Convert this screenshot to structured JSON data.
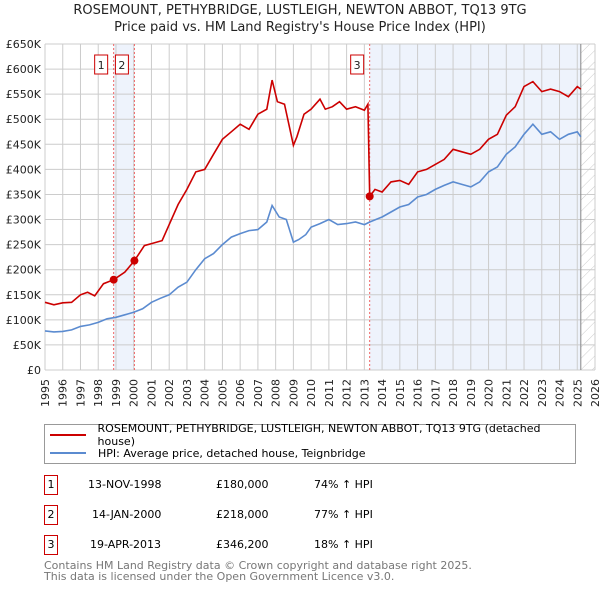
{
  "chart_data": {
    "type": "line",
    "title": "ROSEMOUNT, PETHYBRIDGE, LUSTLEIGH, NEWTON ABBOT, TQ13 9TG",
    "subtitle": "Price paid vs. HM Land Registry's House Price Index (HPI)",
    "xlim": [
      1995,
      2026
    ],
    "ylim": [
      0,
      650000
    ],
    "x_ticks": [
      "1995",
      "1996",
      "1997",
      "1998",
      "1999",
      "2000",
      "2001",
      "2002",
      "2003",
      "2004",
      "2005",
      "2006",
      "2007",
      "2008",
      "2009",
      "2010",
      "2011",
      "2012",
      "2013",
      "2014",
      "2015",
      "2016",
      "2017",
      "2018",
      "2019",
      "2020",
      "2021",
      "2022",
      "2023",
      "2024",
      "2025",
      "2026"
    ],
    "y_ticks": [
      "£0",
      "£50K",
      "£100K",
      "£150K",
      "£200K",
      "£250K",
      "£300K",
      "£350K",
      "£400K",
      "£450K",
      "£500K",
      "£550K",
      "£600K",
      "£650K"
    ],
    "grid": true,
    "colors": {
      "property": "#cc0000",
      "hpi": "#5b8bd0",
      "shade": "#eef3fc"
    },
    "series": [
      {
        "name": "ROSEMOUNT, PETHYBRIDGE, LUSTLEIGH, NEWTON ABBOT, TQ13 9TG (detached house)",
        "x": [
          1995,
          1995.5,
          1996,
          1996.5,
          1997,
          1997.4,
          1997.8,
          1998.3,
          1998.87,
          1999.5,
          2000.04,
          2000.6,
          2001,
          2001.6,
          2002,
          2002.5,
          2003,
          2003.5,
          2004,
          2004.5,
          2005,
          2005.5,
          2006,
          2006.5,
          2007,
          2007.5,
          2007.8,
          2008.1,
          2008.5,
          2009,
          2009.2,
          2009.6,
          2010,
          2010.5,
          2010.8,
          2011.2,
          2011.6,
          2012,
          2012.5,
          2013,
          2013.2,
          2013.3,
          2013.6,
          2014,
          2014.5,
          2015,
          2015.5,
          2016,
          2016.5,
          2017,
          2017.5,
          2018,
          2018.5,
          2019,
          2019.5,
          2020,
          2020.5,
          2021,
          2021.5,
          2022,
          2022.5,
          2023,
          2023.5,
          2024,
          2024.5,
          2025,
          2025.2
        ],
        "values": [
          135000,
          130000,
          134000,
          135000,
          150000,
          155000,
          148000,
          172000,
          180000,
          195000,
          218000,
          248000,
          252000,
          258000,
          290000,
          330000,
          360000,
          395000,
          400000,
          430000,
          460000,
          475000,
          490000,
          480000,
          510000,
          520000,
          578000,
          535000,
          530000,
          448000,
          465000,
          510000,
          520000,
          540000,
          520000,
          525000,
          535000,
          520000,
          525000,
          518000,
          530000,
          346200,
          360000,
          355000,
          375000,
          378000,
          370000,
          395000,
          400000,
          410000,
          420000,
          440000,
          435000,
          430000,
          440000,
          460000,
          470000,
          508000,
          525000,
          565000,
          575000,
          555000,
          560000,
          555000,
          545000,
          565000,
          560000
        ]
      },
      {
        "name": "HPI: Average price, detached house, Teignbridge",
        "x": [
          1995,
          1995.5,
          1996,
          1996.5,
          1997,
          1997.5,
          1998,
          1998.5,
          1999,
          1999.5,
          2000,
          2000.5,
          2001,
          2001.5,
          2002,
          2002.5,
          2003,
          2003.5,
          2004,
          2004.5,
          2005,
          2005.5,
          2006,
          2006.5,
          2007,
          2007.5,
          2007.8,
          2008.2,
          2008.6,
          2009,
          2009.3,
          2009.7,
          2010,
          2010.5,
          2011,
          2011.5,
          2012,
          2012.5,
          2013,
          2013.3,
          2014,
          2014.5,
          2015,
          2015.5,
          2016,
          2016.5,
          2017,
          2017.5,
          2018,
          2018.5,
          2019,
          2019.5,
          2020,
          2020.5,
          2021,
          2021.5,
          2022,
          2022.5,
          2023,
          2023.5,
          2024,
          2024.5,
          2025,
          2025.2
        ],
        "values": [
          78000,
          76000,
          77000,
          80000,
          87000,
          90000,
          95000,
          102000,
          105000,
          110000,
          115000,
          122000,
          135000,
          143000,
          150000,
          165000,
          175000,
          200000,
          222000,
          232000,
          250000,
          265000,
          272000,
          278000,
          280000,
          295000,
          328000,
          305000,
          300000,
          255000,
          260000,
          270000,
          285000,
          292000,
          300000,
          290000,
          292000,
          295000,
          290000,
          295000,
          305000,
          315000,
          325000,
          330000,
          345000,
          350000,
          360000,
          368000,
          375000,
          370000,
          365000,
          375000,
          395000,
          405000,
          430000,
          445000,
          470000,
          490000,
          470000,
          475000,
          460000,
          470000,
          475000,
          465000
        ]
      }
    ],
    "sales": [
      {
        "label": "1",
        "x": 1998.87,
        "value": 180000
      },
      {
        "label": "2",
        "x": 2000.04,
        "value": 218000
      },
      {
        "label": "3",
        "x": 2013.3,
        "value": 346200
      }
    ],
    "shaded_ranges": [
      [
        1998.87,
        2000.04
      ],
      [
        2013.3,
        2025.2
      ]
    ],
    "hatched_from": 2025.2
  },
  "header": {
    "title": "ROSEMOUNT, PETHYBRIDGE, LUSTLEIGH, NEWTON ABBOT, TQ13 9TG",
    "subtitle": "Price paid vs. HM Land Registry's House Price Index (HPI)"
  },
  "legend": [
    "ROSEMOUNT, PETHYBRIDGE, LUSTLEIGH, NEWTON ABBOT, TQ13 9TG (detached house)",
    "HPI: Average price, detached house, Teignbridge"
  ],
  "transactions": [
    {
      "num": "1",
      "date": "13-NOV-1998",
      "price": "£180,000",
      "hpi": "74% ↑ HPI"
    },
    {
      "num": "2",
      "date": "14-JAN-2000",
      "price": "£218,000",
      "hpi": "77% ↑ HPI"
    },
    {
      "num": "3",
      "date": "19-APR-2013",
      "price": "£346,200",
      "hpi": "18% ↑ HPI"
    }
  ],
  "footer": {
    "line1": "Contains HM Land Registry data © Crown copyright and database right 2025.",
    "line2": "This data is licensed under the Open Government Licence v3.0."
  }
}
